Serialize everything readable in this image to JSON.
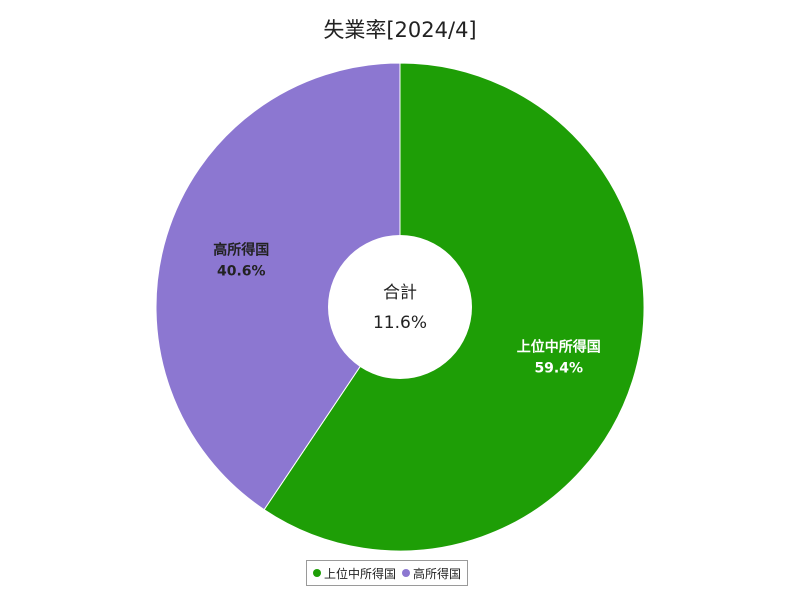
{
  "chart_data": {
    "type": "pie",
    "title": "失業率[2024/4]",
    "center_label": "合計",
    "center_value": "11.6%",
    "legend_position": "bottom",
    "slices": [
      {
        "name": "上位中所得国",
        "value": 59.4,
        "value_label": "59.4%",
        "color": "#1e9e06",
        "label_color": "#ffffff"
      },
      {
        "name": "高所得国",
        "value": 40.6,
        "value_label": "40.6%",
        "color": "#8c77d1",
        "label_color": "#222222"
      }
    ]
  }
}
